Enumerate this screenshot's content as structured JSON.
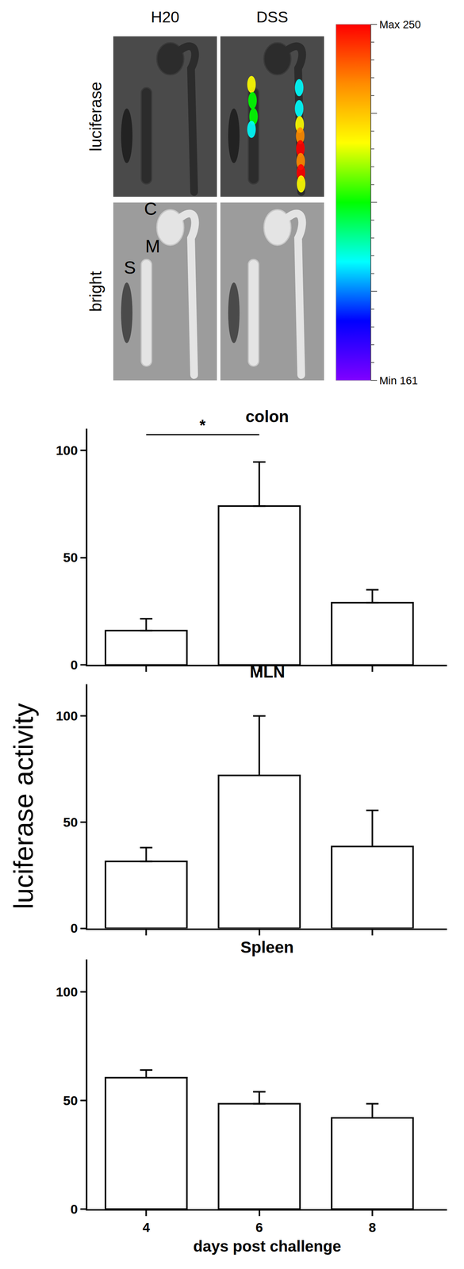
{
  "figure_panel": {
    "columns": [
      "H20",
      "DSS"
    ],
    "rows": [
      "luciferase",
      "bright"
    ],
    "organ_labels": [
      "S",
      "M",
      "C"
    ],
    "colorbar": {
      "max": 250,
      "min": 161,
      "max_label": "Max 250",
      "min_label": "Min 161",
      "colors": [
        "#ff0000",
        "#ff8c00",
        "#ffff00",
        "#00ff00",
        "#00ffff",
        "#0000ff",
        "#8000ff"
      ]
    }
  },
  "chart_data": [
    {
      "type": "bar",
      "title": "colon",
      "categories": [
        "4",
        "6",
        "8"
      ],
      "values": [
        16,
        74,
        29
      ],
      "errors": [
        5.5,
        20.5,
        6
      ],
      "color": "#ffffff",
      "ylim": [
        0,
        110
      ],
      "yticks": [
        0,
        50,
        100
      ],
      "grid": false,
      "tick_labels": "y",
      "annotations": [
        {
          "text": "*",
          "between": [
            "4",
            "6"
          ]
        }
      ]
    },
    {
      "type": "bar",
      "title": "MLN",
      "categories": [
        "4",
        "6",
        "8"
      ],
      "values": [
        31.5,
        72,
        38.5
      ],
      "errors": [
        6.5,
        28,
        17
      ],
      "color": "#ffffff",
      "ylim": [
        0,
        115
      ],
      "yticks": [
        0,
        50,
        100
      ],
      "grid": false,
      "tick_labels": "y",
      "ylabel": "luciferase activity"
    },
    {
      "type": "bar",
      "title": "Spleen",
      "categories": [
        "4",
        "6",
        "8"
      ],
      "values": [
        60.5,
        48.5,
        42
      ],
      "errors": [
        3.5,
        5.5,
        6.5
      ],
      "color": "#ffffff",
      "ylim": [
        0,
        115
      ],
      "yticks": [
        0,
        50,
        100
      ],
      "grid": false,
      "xlabel": "days post challenge"
    }
  ]
}
